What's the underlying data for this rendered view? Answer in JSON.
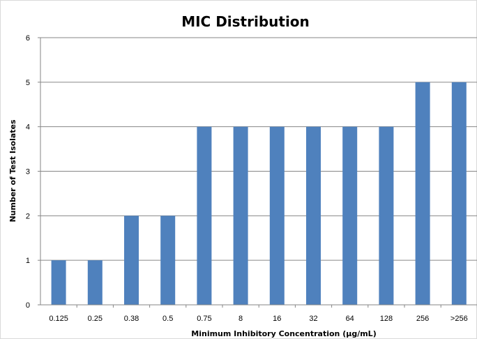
{
  "chart_data": {
    "type": "bar",
    "title": "MIC Distribution",
    "xlabel": "Minimum Inhibitory Concentration (µg/mL)",
    "ylabel": "Number of Test Isolates",
    "categories": [
      "0.125",
      "0.25",
      "0.38",
      "0.5",
      "0.75",
      "8",
      "16",
      "32",
      "64",
      "128",
      "256",
      ">256"
    ],
    "values": [
      1,
      1,
      2,
      2,
      4,
      4,
      4,
      4,
      4,
      4,
      5,
      5
    ],
    "ylim": [
      0,
      6
    ],
    "yticks": [
      "0",
      "1",
      "2",
      "3",
      "4",
      "5",
      "6"
    ],
    "grid": true,
    "legend": "none",
    "bar_color": "#4f81bd",
    "grid_color": "#868686"
  }
}
